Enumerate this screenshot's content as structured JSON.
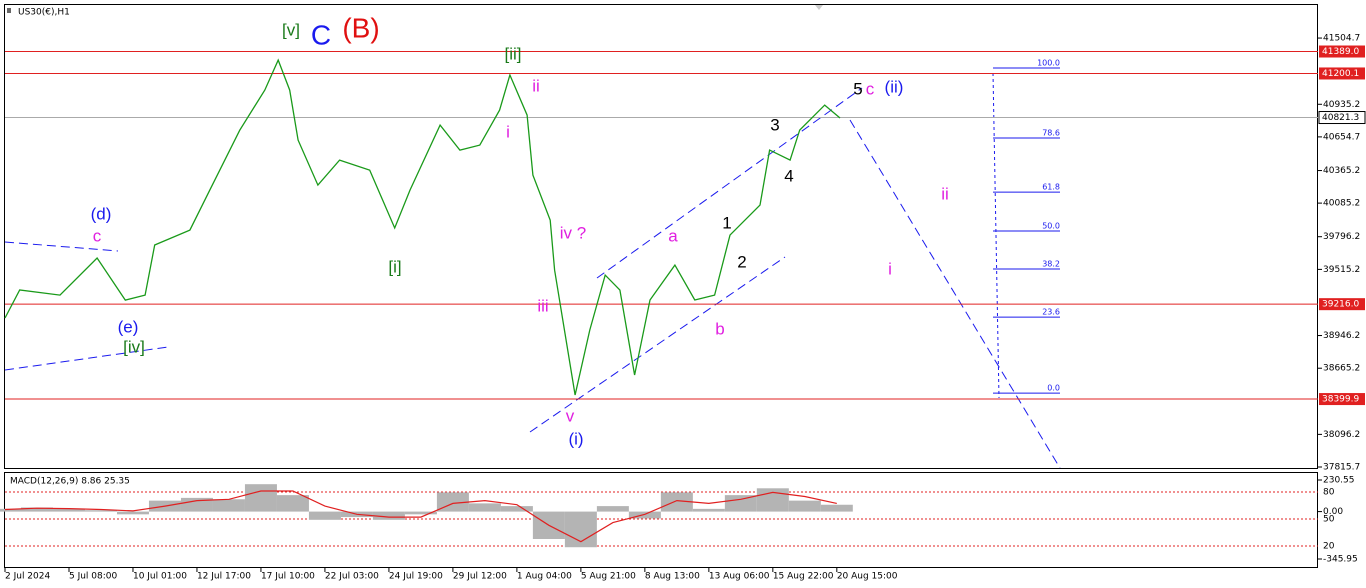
{
  "chart_data": [
    {
      "type": "line",
      "title": "US30(€),H1",
      "x": [
        0,
        0.23,
        0.86,
        1.44,
        1.88,
        2.19,
        2.34,
        2.89,
        3.2,
        3.67,
        4.06,
        4.27,
        4.45,
        4.58,
        4.89,
        5.23,
        5.7,
        6.09,
        6.33,
        6.8,
        7.11,
        7.42,
        7.73,
        7.89,
        8.16,
        8.25,
        8.52,
        8.59,
        8.91,
        9.14,
        9.38,
        9.61,
        9.84,
        10.08,
        10.47,
        10.78,
        11.09,
        11.33,
        11.8,
        11.95,
        12.27,
        12.42,
        12.81,
        13.05
      ],
      "series": [
        {
          "color": "#1a9a1a",
          "values": [
            39097,
            39338,
            39294,
            39613,
            39251,
            39294,
            39725,
            39853,
            40197,
            40713,
            41057,
            41315,
            41057,
            40627,
            40240,
            40455,
            40369,
            39871,
            40197,
            40756,
            40541,
            40584,
            40885,
            41187,
            40842,
            40326,
            39939,
            39509,
            38435,
            38994,
            39466,
            39338,
            38607,
            39252,
            39552,
            39252,
            39294,
            39810,
            40068,
            40541,
            40455,
            40713,
            40928,
            40817
          ]
        }
      ],
      "xlim": [
        0,
        20.52
      ],
      "xticks": [
        {
          "value": 0,
          "label": "2 Jul 2024"
        },
        {
          "value": 1,
          "label": "5 Jul 08:00"
        },
        {
          "value": 2,
          "label": "10 Jul 01:00"
        },
        {
          "value": 3,
          "label": "12 Jul 17:00"
        },
        {
          "value": 4,
          "label": "17 Jul 10:00"
        },
        {
          "value": 5,
          "label": "22 Jul 03:00"
        },
        {
          "value": 6,
          "label": "24 Jul 19:00"
        },
        {
          "value": 7,
          "label": "29 Jul 12:00"
        },
        {
          "value": 8,
          "label": "1 Aug 04:00"
        },
        {
          "value": 9,
          "label": "5 Aug 21:00"
        },
        {
          "value": 10,
          "label": "8 Aug 13:00"
        },
        {
          "value": 11,
          "label": "13 Aug 06:00"
        },
        {
          "value": 12,
          "label": "15 Aug 22:00"
        },
        {
          "value": 13,
          "label": "20 Aug 15:00"
        }
      ],
      "ylim": [
        37807,
        41789
      ],
      "yticks": [
        41504.7,
        40935.2,
        40654.7,
        40365.2,
        40085.2,
        39796.2,
        39515.2,
        38946.2,
        38665.2,
        38096.2,
        37815.7
      ],
      "hlines": [
        {
          "value": 41389,
          "label": "41389.0"
        },
        {
          "value": 41200.1,
          "label": "41200.1"
        },
        {
          "value": 39216,
          "label": "39216.0"
        },
        {
          "value": 38399.9,
          "label": "38399.9"
        }
      ],
      "hline_color": "#e02020",
      "current_price": 40821.3,
      "fib_levels": [
        {
          "value": 41247,
          "label": "100.0"
        },
        {
          "value": 40645,
          "label": "78.6"
        },
        {
          "value": 40180,
          "label": "61.8"
        },
        {
          "value": 39845,
          "label": "50.0"
        },
        {
          "value": 39518,
          "label": "38.2"
        },
        {
          "value": 39105,
          "label": "23.6"
        },
        {
          "value": 38451,
          "label": "0.0"
        }
      ],
      "annotations": [
        {
          "text": "[v]",
          "color": "#1a7a1a"
        },
        {
          "text": "C",
          "color": "#1a1aee"
        },
        {
          "text": "(B)",
          "color": "#e01010"
        },
        {
          "text": "[ii]",
          "color": "#1a7a1a"
        },
        {
          "text": "ii",
          "color": "#e020e0"
        },
        {
          "text": "i",
          "color": "#e020e0"
        },
        {
          "text": "(d)",
          "color": "#1a1aee"
        },
        {
          "text": "c",
          "color": "#e020e0"
        },
        {
          "text": "(e)",
          "color": "#1a1aee"
        },
        {
          "text": "[iv]",
          "color": "#1a7a1a"
        },
        {
          "text": "[i]",
          "color": "#1a7a1a"
        },
        {
          "text": "iv ?",
          "color": "#e020e0"
        },
        {
          "text": "iii",
          "color": "#e020e0"
        },
        {
          "text": "v",
          "color": "#e020e0"
        },
        {
          "text": "(i)",
          "color": "#1a1aee"
        },
        {
          "text": "a",
          "color": "#e020e0"
        },
        {
          "text": "b",
          "color": "#e020e0"
        },
        {
          "text": "1",
          "color": "#000000"
        },
        {
          "text": "2",
          "color": "#000000"
        },
        {
          "text": "3",
          "color": "#000000"
        },
        {
          "text": "4",
          "color": "#000000"
        },
        {
          "text": "5",
          "color": "#000000"
        },
        {
          "text": "c",
          "color": "#e020e0"
        },
        {
          "text": "(ii)",
          "color": "#1a1aee"
        },
        {
          "text": "ii",
          "color": "#e020e0"
        },
        {
          "text": "i",
          "color": "#e020e0"
        }
      ]
    },
    {
      "type": "bar",
      "title": "MACD(12,26,9) 8.86 25.35",
      "series": [
        {
          "name": "MACD",
          "color": "#b4b4b4",
          "values": [
            20,
            30,
            20,
            10,
            -20,
            80,
            100,
            90,
            200,
            120,
            -60,
            -40,
            -60,
            -20,
            140,
            60,
            40,
            -200,
            -260,
            40,
            -50,
            140,
            20,
            120,
            170,
            80,
            50
          ]
        },
        {
          "name": "Signal",
          "color": "#e02020",
          "values": [
            15,
            25,
            22,
            15,
            5,
            40,
            80,
            90,
            150,
            150,
            40,
            -20,
            -40,
            -40,
            60,
            80,
            50,
            -100,
            -220,
            -80,
            -20,
            80,
            60,
            90,
            140,
            110,
            60
          ]
        }
      ],
      "ylim": [
        -411.6,
        281.6
      ],
      "yticks": [
        230.55,
        {
          "value": 0,
          "label": "0.00"
        },
        -345.95
      ],
      "levels": [
        80,
        50,
        20
      ]
    }
  ]
}
